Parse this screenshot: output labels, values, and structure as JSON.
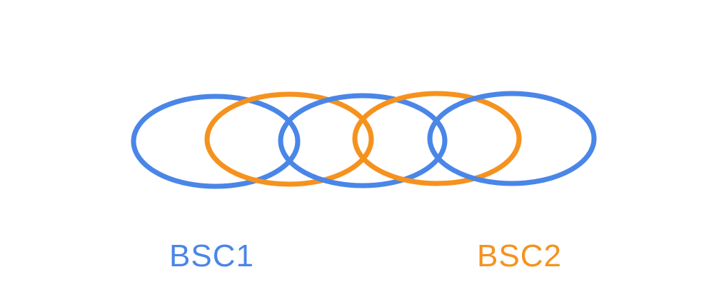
{
  "colors": {
    "bsc1": "#4a86e8",
    "bsc2": "#f5921e",
    "background": "#ffffff"
  },
  "labels": {
    "bsc1": "BSC1",
    "bsc2": "BSC2"
  },
  "rings": [
    {
      "group": "bsc1"
    },
    {
      "group": "bsc2"
    },
    {
      "group": "bsc1"
    },
    {
      "group": "bsc2"
    },
    {
      "group": "bsc1"
    }
  ]
}
